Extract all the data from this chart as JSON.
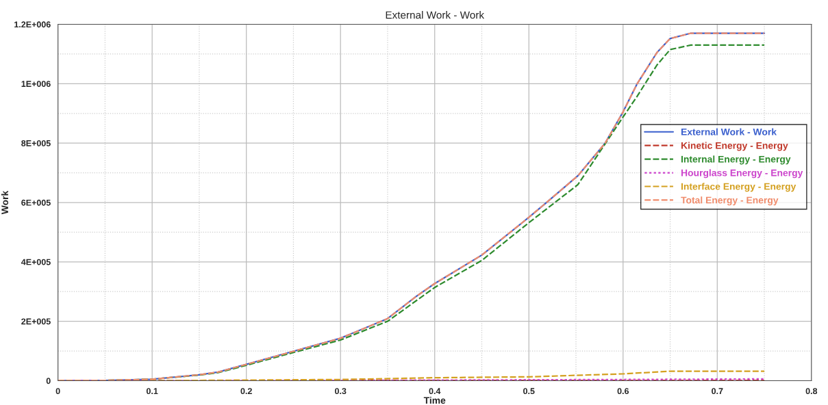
{
  "chart_data": {
    "type": "line",
    "title": "External Work - Work",
    "xlabel": "Time",
    "ylabel": "Work",
    "xlim": [
      0,
      0.8
    ],
    "xticks": [
      0,
      0.1,
      0.2,
      0.3,
      0.4,
      0.5,
      0.6,
      0.7,
      0.8
    ],
    "ylim": [
      0,
      1200000
    ],
    "yticks": [
      0,
      {
        "value": 200000,
        "label": "2E+005"
      },
      {
        "value": 400000,
        "label": "4E+005"
      },
      {
        "value": 600000,
        "label": "6E+005"
      },
      {
        "value": 800000,
        "label": "8E+005"
      },
      {
        "value": 1000000,
        "label": "1E+006"
      },
      {
        "value": 1200000,
        "label": "1.2E+006"
      }
    ],
    "grid": true,
    "legend": "right",
    "marker": "none",
    "series": [
      {
        "name": "External Work - Work",
        "color": "#3a5fcd",
        "line_style": "solid",
        "x": [
          0,
          0.05,
          0.1,
          0.15,
          0.17,
          0.2,
          0.25,
          0.3,
          0.35,
          0.38,
          0.4,
          0.45,
          0.5,
          0.518,
          0.552,
          0.581,
          0.6,
          0.615,
          0.636,
          0.65,
          0.672,
          0.7,
          0.75
        ],
        "values": [
          0,
          1000,
          5000,
          20000,
          29000,
          55000,
          99000,
          143000,
          209000,
          283000,
          327000,
          423000,
          550000,
          598000,
          690000,
          800000,
          905000,
          1000000,
          1105000,
          1152000,
          1170000,
          1170000,
          1170000
        ]
      },
      {
        "name": "Kinetic Energy - Energy",
        "color": "#c0392b",
        "line_style": "dashed",
        "x": [
          0,
          0.2,
          0.4,
          0.6,
          0.75
        ],
        "values": [
          0,
          0,
          1000,
          1000,
          1000
        ]
      },
      {
        "name": "Internal Energy - Energy",
        "color": "#2e8b2e",
        "line_style": "dashed",
        "x": [
          0,
          0.05,
          0.1,
          0.15,
          0.17,
          0.2,
          0.25,
          0.3,
          0.35,
          0.4,
          0.45,
          0.5,
          0.552,
          0.6,
          0.615,
          0.636,
          0.65,
          0.672,
          0.7,
          0.75
        ],
        "values": [
          0,
          1000,
          5000,
          19000,
          27000,
          52000,
          95000,
          137000,
          200000,
          314000,
          405000,
          532000,
          660000,
          888000,
          958000,
          1063000,
          1115000,
          1130000,
          1130000,
          1130000
        ]
      },
      {
        "name": "Hourglass Energy - Energy",
        "color": "#cc44cc",
        "line_style": "dotted",
        "x": [
          0,
          0.2,
          0.4,
          0.6,
          0.75
        ],
        "values": [
          0,
          0,
          2000,
          4000,
          6000
        ]
      },
      {
        "name": "Interface Energy - Energy",
        "color": "#d4a020",
        "line_style": "dashed",
        "x": [
          0,
          0.1,
          0.2,
          0.3,
          0.4,
          0.5,
          0.6,
          0.65,
          0.7,
          0.75
        ],
        "values": [
          0,
          0,
          2000,
          4000,
          10000,
          13000,
          23000,
          32000,
          32000,
          32000
        ]
      },
      {
        "name": "Total Energy - Energy",
        "color": "#f08c6c",
        "line_style": "dashed",
        "x": [
          0,
          0.05,
          0.1,
          0.15,
          0.17,
          0.2,
          0.25,
          0.3,
          0.35,
          0.38,
          0.4,
          0.45,
          0.5,
          0.518,
          0.552,
          0.581,
          0.6,
          0.615,
          0.636,
          0.65,
          0.672,
          0.7,
          0.75
        ],
        "values": [
          0,
          1000,
          5000,
          20000,
          29000,
          55000,
          99000,
          143000,
          209000,
          283000,
          327000,
          423000,
          550000,
          598000,
          690000,
          800000,
          905000,
          1000000,
          1105000,
          1152000,
          1170000,
          1170000,
          1170000
        ]
      }
    ]
  }
}
